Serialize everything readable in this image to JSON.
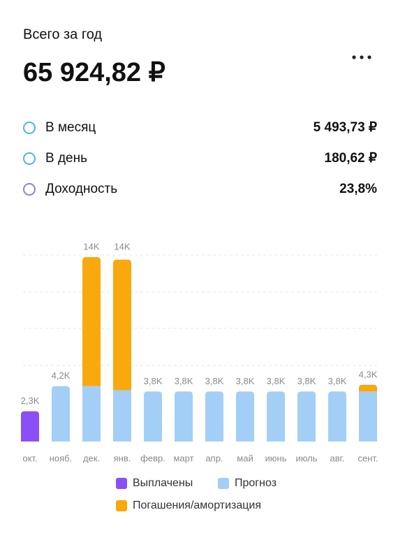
{
  "header": {
    "title": "Всего за год",
    "total": "65 924,82 ₽"
  },
  "stats": [
    {
      "label": "В месяц",
      "value": "5 493,73 ₽"
    },
    {
      "label": "В день",
      "value": "180,62 ₽"
    },
    {
      "label": "Доходность",
      "value": "23,8%"
    }
  ],
  "chart_data": {
    "type": "bar",
    "stacked": true,
    "categories": [
      "окт.",
      "нояб.",
      "дек.",
      "янв.",
      "февр.",
      "март",
      "апр.",
      "май",
      "июнь",
      "июль",
      "авг.",
      "сент."
    ],
    "series": [
      {
        "name": "Выплачены",
        "color": "#8b4ff6",
        "values": [
          2.3,
          null,
          null,
          null,
          null,
          null,
          null,
          null,
          null,
          null,
          null,
          null
        ]
      },
      {
        "name": "Прогноз",
        "color": "#a3cff7",
        "values": [
          null,
          4.2,
          4.2,
          3.9,
          3.8,
          3.8,
          3.8,
          3.8,
          3.8,
          3.8,
          3.8,
          3.8
        ]
      },
      {
        "name": "Погашения/амортизация",
        "color": "#f9a80d",
        "values": [
          null,
          null,
          9.8,
          9.9,
          null,
          null,
          null,
          null,
          null,
          null,
          null,
          0.5
        ]
      }
    ],
    "totals": {
      "values": [
        2.3,
        4.2,
        14,
        14,
        3.8,
        3.8,
        3.8,
        3.8,
        3.8,
        3.8,
        3.8,
        4.3
      ],
      "value_labels": [
        "2,3K",
        "4,2K",
        "14K",
        "14K",
        "3,8K",
        "3,8K",
        "3,8K",
        "3,8K",
        "3,8K",
        "3,8K",
        "3,8K",
        "4,3K"
      ]
    },
    "ylim": [
      0,
      14
    ]
  }
}
